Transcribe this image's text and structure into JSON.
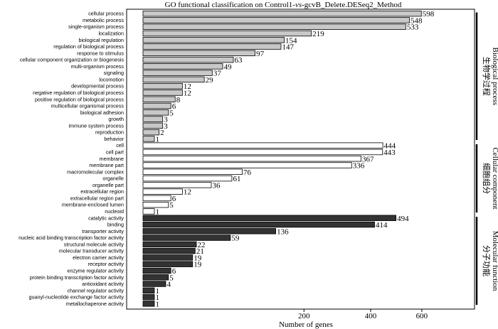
{
  "chart_data": {
    "type": "bar",
    "orientation": "horizontal",
    "title_parts": [
      "GO functional classification on Control1-",
      "vs",
      "-gcvB_Delete.DESeq2_Method"
    ],
    "xlabel": "Number of genes",
    "xticks": [
      200,
      400,
      600
    ],
    "xscale": "sqrt",
    "xlim": [
      0,
      620
    ],
    "groups": [
      {
        "zh": "生物学过程",
        "en": "Biological process",
        "color": "#c8c8c8",
        "categories": [
          "cellular process",
          "metabolic process",
          "single-organism process",
          "localization",
          "biological regulation",
          "regulation of biological process",
          "response to stimulus",
          "cellular component organization or biogenesis",
          "multi-organism process",
          "signaling",
          "locomotion",
          "developmental process",
          "negative regulation of biological process",
          "positive regulation of biological process",
          "multicellular organismal process",
          "biological adhesion",
          "growth",
          "immune system process",
          "reproduction",
          "behavior"
        ],
        "values": [
          598,
          548,
          533,
          219,
          154,
          147,
          97,
          63,
          49,
          37,
          29,
          12,
          12,
          8,
          6,
          5,
          3,
          3,
          2,
          1
        ]
      },
      {
        "zh": "细胞组分",
        "en": "Cellular component",
        "color": "#ffffff",
        "categories": [
          "cell",
          "cell part",
          "membrane",
          "membrane part",
          "macromolecular complex",
          "organelle",
          "organelle part",
          "extracellular region",
          "extracellular region part",
          "membrane-enclosed lumen",
          "nucleoid"
        ],
        "values": [
          444,
          443,
          367,
          336,
          76,
          61,
          36,
          12,
          6,
          5,
          1
        ]
      },
      {
        "zh": "分子功能",
        "en": "Molecular function",
        "color": "#333333",
        "categories": [
          "catalytic activity",
          "binding",
          "transporter activity",
          "nucleic acid binding transcription factor activity",
          "structural molecule activity",
          "molecular transducer activity",
          "electron carrier activity",
          "receptor activity",
          "enzyme regulator activity",
          "protein binding transcription factor activity",
          "antioxidant activity",
          "channel regulator activity",
          "guanyl-nucleotide exchange factor activity",
          "metallochaperone activity"
        ],
        "values": [
          494,
          414,
          136,
          59,
          22,
          21,
          19,
          19,
          6,
          5,
          4,
          1,
          1,
          1
        ]
      }
    ]
  }
}
